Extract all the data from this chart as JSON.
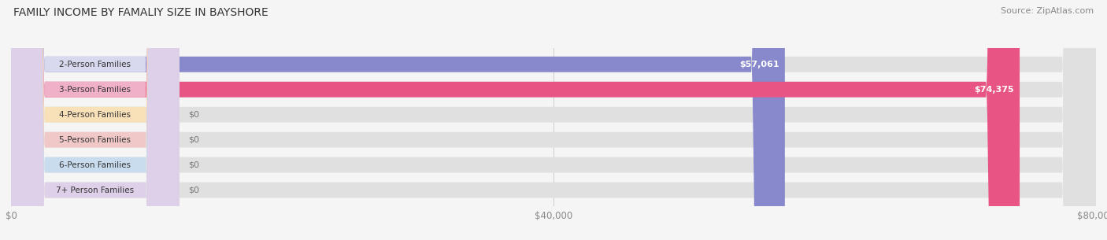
{
  "title": "FAMILY INCOME BY FAMALIY SIZE IN BAYSHORE",
  "source": "Source: ZipAtlas.com",
  "categories": [
    "2-Person Families",
    "3-Person Families",
    "4-Person Families",
    "5-Person Families",
    "6-Person Families",
    "7+ Person Families"
  ],
  "values": [
    57061,
    74375,
    0,
    0,
    0,
    0
  ],
  "bar_colors": [
    "#8888cc",
    "#e85585",
    "#f5c888",
    "#e89898",
    "#a8c4e0",
    "#c4b0d8"
  ],
  "label_bg_colors": [
    "#d8d8ee",
    "#f0b0c8",
    "#f8e0b8",
    "#f0c8c8",
    "#c8dced",
    "#ddd0e8"
  ],
  "value_labels": [
    "$57,061",
    "$74,375",
    "$0",
    "$0",
    "$0",
    "$0"
  ],
  "xlim": [
    0,
    80000
  ],
  "xticks": [
    0,
    40000,
    80000
  ],
  "xticklabels": [
    "$0",
    "$40,000",
    "$80,000"
  ],
  "bg_color": "#f5f5f5",
  "bar_height": 0.62,
  "figsize": [
    14.06,
    3.05
  ],
  "dpi": 100
}
